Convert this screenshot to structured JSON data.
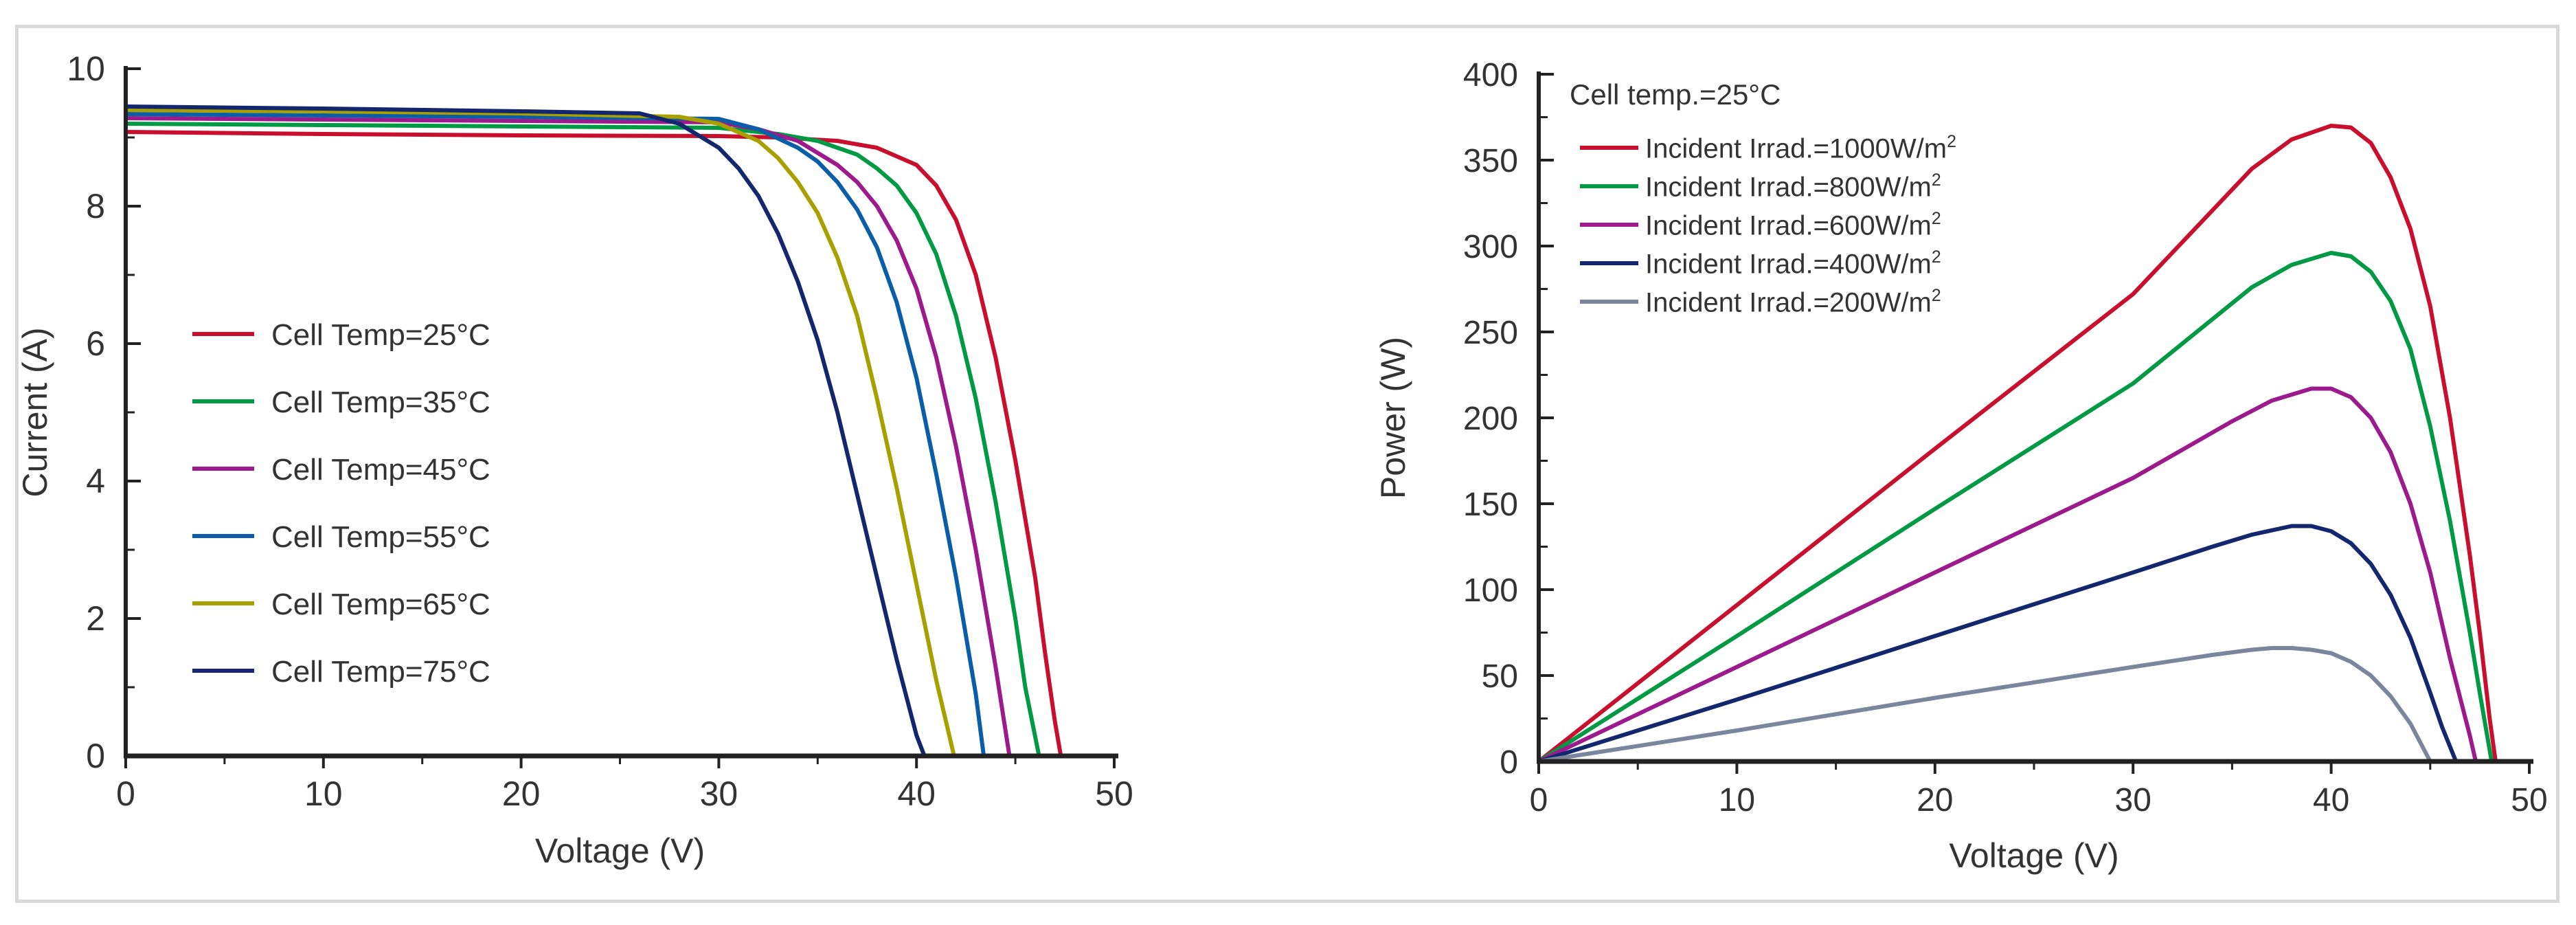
{
  "chart_data": [
    {
      "type": "line",
      "title": "",
      "xlabel": "Voltage (V)",
      "ylabel": "Current (A)",
      "xlim": [
        0,
        50
      ],
      "ylim": [
        0,
        10
      ],
      "xticks": [
        "0",
        "10",
        "20",
        "30",
        "40",
        "50"
      ],
      "yticks": [
        "0",
        "2",
        "4",
        "6",
        "8",
        "10"
      ],
      "legend_location": "left-middle",
      "series": [
        {
          "name": "Cell Temp=25°C",
          "color": "#c8102e",
          "x": [
            0,
            10,
            20,
            30,
            33,
            36,
            38,
            40,
            41,
            42,
            43,
            44,
            45,
            46,
            46.5,
            47,
            47.3
          ],
          "y": [
            9.08,
            9.05,
            9.03,
            9.02,
            9.0,
            8.95,
            8.85,
            8.6,
            8.3,
            7.8,
            7.0,
            5.8,
            4.3,
            2.6,
            1.5,
            0.5,
            0
          ]
        },
        {
          "name": "Cell Temp=35°C",
          "color": "#009a44",
          "x": [
            0,
            10,
            20,
            30,
            33,
            35,
            37,
            38,
            39,
            40,
            41,
            42,
            43,
            44,
            45,
            45.5,
            46.2
          ],
          "y": [
            9.2,
            9.18,
            9.16,
            9.14,
            9.05,
            8.95,
            8.75,
            8.55,
            8.3,
            7.9,
            7.3,
            6.4,
            5.2,
            3.7,
            2.0,
            1.0,
            0
          ]
        },
        {
          "name": "Cell Temp=45°C",
          "color": "#9c1a8c",
          "x": [
            0,
            10,
            20,
            30,
            32,
            34,
            36,
            37,
            38,
            39,
            40,
            41,
            42,
            43,
            44,
            44.7
          ],
          "y": [
            9.28,
            9.26,
            9.24,
            9.22,
            9.12,
            8.95,
            8.6,
            8.35,
            8.0,
            7.5,
            6.8,
            5.8,
            4.5,
            3.0,
            1.3,
            0
          ]
        },
        {
          "name": "Cell Temp=55°C",
          "color": "#0a5ea8",
          "x": [
            0,
            10,
            20,
            30,
            32,
            34,
            35,
            36,
            37,
            38,
            39,
            40,
            41,
            42,
            43,
            43.4
          ],
          "y": [
            9.34,
            9.32,
            9.3,
            9.27,
            9.12,
            8.85,
            8.65,
            8.35,
            7.95,
            7.4,
            6.6,
            5.5,
            4.1,
            2.6,
            0.9,
            0
          ]
        },
        {
          "name": "Cell Temp=65°C",
          "color": "#a8a000",
          "x": [
            0,
            10,
            20,
            28,
            30,
            32,
            33,
            34,
            35,
            36,
            37,
            38,
            39,
            40,
            41,
            41.9
          ],
          "y": [
            9.4,
            9.38,
            9.35,
            9.3,
            9.2,
            8.95,
            8.7,
            8.35,
            7.9,
            7.25,
            6.4,
            5.2,
            3.9,
            2.5,
            1.1,
            0
          ]
        },
        {
          "name": "Cell Temp=75°C",
          "color": "#13276e",
          "x": [
            0,
            10,
            20,
            26,
            28,
            30,
            31,
            32,
            33,
            34,
            35,
            36,
            37,
            38,
            39,
            40,
            40.4
          ],
          "y": [
            9.45,
            9.42,
            9.38,
            9.35,
            9.2,
            8.85,
            8.55,
            8.15,
            7.6,
            6.9,
            6.05,
            5.0,
            3.8,
            2.6,
            1.4,
            0.3,
            0
          ]
        }
      ]
    },
    {
      "type": "line",
      "title": "",
      "annotation": "Cell temp.=25°C",
      "xlabel": "Voltage (V)",
      "ylabel": "Power (W)",
      "xlim": [
        0,
        50
      ],
      "ylim": [
        0,
        400
      ],
      "xticks": [
        "0",
        "10",
        "20",
        "30",
        "40",
        "50"
      ],
      "yticks": [
        "0",
        "50",
        "100",
        "150",
        "200",
        "250",
        "300",
        "350",
        "400"
      ],
      "legend_location": "top-left",
      "series": [
        {
          "name": "Incident Irrad.=1000W/m",
          "superscript": "2",
          "color": "#c8102e",
          "x": [
            0,
            10,
            20,
            30,
            36,
            38,
            40,
            41,
            42,
            43,
            44,
            45,
            46,
            47,
            47.5,
            48,
            48.3
          ],
          "y": [
            0,
            91,
            182,
            272,
            345,
            362,
            370,
            369,
            360,
            340,
            310,
            265,
            200,
            120,
            75,
            25,
            0
          ]
        },
        {
          "name": "Incident Irrad.=800W/m",
          "superscript": "2",
          "color": "#009a44",
          "x": [
            0,
            10,
            20,
            30,
            36,
            38,
            40,
            41,
            42,
            43,
            44,
            45,
            46,
            47,
            47.5,
            48.1
          ],
          "y": [
            0,
            73,
            147,
            220,
            276,
            289,
            296,
            294,
            285,
            268,
            240,
            195,
            140,
            75,
            40,
            0
          ]
        },
        {
          "name": "Incident Irrad.=600W/m",
          "superscript": "2",
          "color": "#9c1a8c",
          "x": [
            0,
            10,
            20,
            30,
            35,
            37,
            39,
            40,
            41,
            42,
            43,
            44,
            45,
            46,
            47,
            47.3
          ],
          "y": [
            0,
            55,
            110,
            165,
            198,
            210,
            217,
            217,
            212,
            200,
            180,
            150,
            110,
            60,
            15,
            0
          ]
        },
        {
          "name": "Incident Irrad.=400W/m",
          "superscript": "2",
          "color": "#13276e",
          "x": [
            0,
            10,
            20,
            30,
            34,
            36,
            38,
            39,
            40,
            41,
            42,
            43,
            44,
            45,
            45.6,
            46.3
          ],
          "y": [
            0,
            36,
            73,
            110,
            125,
            132,
            137,
            137,
            134,
            127,
            115,
            97,
            72,
            40,
            20,
            0
          ]
        },
        {
          "name": "Incident Irrad.=200W/m",
          "superscript": "2",
          "color": "#7a869c",
          "x": [
            0,
            10,
            20,
            30,
            34,
            36,
            37,
            38,
            39,
            40,
            41,
            42,
            43,
            44,
            45
          ],
          "y": [
            0,
            18,
            37,
            55,
            62,
            65,
            66,
            66,
            65,
            63,
            58,
            50,
            38,
            22,
            0
          ]
        }
      ]
    }
  ]
}
